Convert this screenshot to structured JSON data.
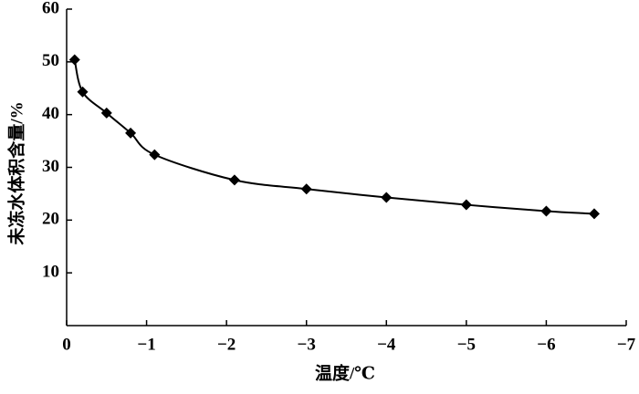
{
  "chart_data": {
    "type": "line",
    "x_label": "温度/℃",
    "y_label": "未冻水体积含量/%",
    "xlim": [
      0,
      -7
    ],
    "xticks": [
      0,
      {
        "value": -1,
        "label": "−1"
      },
      {
        "value": -2,
        "label": "−2"
      },
      {
        "value": -3,
        "label": "−3"
      },
      {
        "value": -4,
        "label": "−4"
      },
      {
        "value": -5,
        "label": "−5"
      },
      {
        "value": -6,
        "label": "−6"
      },
      {
        "value": -7,
        "label": "−7"
      }
    ],
    "ylim": [
      0,
      60
    ],
    "yticks": [
      10,
      20,
      30,
      40,
      50,
      60
    ],
    "grid": false,
    "x": [
      -0.1,
      -0.2,
      -0.5,
      -0.8,
      -1.1,
      -2.1,
      -3,
      -4,
      -5,
      -6,
      -6.6
    ],
    "series": [
      {
        "color": "#000000",
        "values": [
          50.4,
          44.3,
          40.3,
          36.5,
          32.4,
          27.6,
          25.9,
          24.3,
          22.9,
          21.7,
          21.2
        ]
      }
    ]
  }
}
